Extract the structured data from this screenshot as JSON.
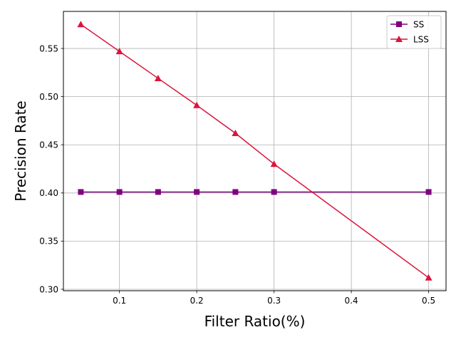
{
  "chart_data": {
    "type": "line",
    "title": "",
    "xlabel": "Filter Ratio(%)",
    "ylabel": "Precision Rate",
    "xlim": [
      0.0275,
      0.5225
    ],
    "ylim": [
      0.2985,
      0.5885
    ],
    "xticks": [
      0.1,
      0.2,
      0.3,
      0.4,
      0.5
    ],
    "xtick_labels": [
      "0.1",
      "0.2",
      "0.3",
      "0.4",
      "0.5"
    ],
    "yticks": [
      0.3,
      0.35,
      0.4,
      0.45,
      0.5,
      0.55
    ],
    "ytick_labels": [
      "0.30",
      "0.35",
      "0.40",
      "0.45",
      "0.50",
      "0.55"
    ],
    "grid": true,
    "legend": "top-right",
    "series": [
      {
        "name": "SS",
        "color": "#800080",
        "marker": "square",
        "x": [
          0.05,
          0.1,
          0.15,
          0.2,
          0.25,
          0.3,
          0.5
        ],
        "y": [
          0.401,
          0.401,
          0.401,
          0.401,
          0.401,
          0.401,
          0.401
        ]
      },
      {
        "name": "LSS",
        "color": "#dc143c",
        "marker": "triangle",
        "x": [
          0.05,
          0.1,
          0.15,
          0.2,
          0.25,
          0.3,
          0.5
        ],
        "y": [
          0.575,
          0.547,
          0.519,
          0.491,
          0.462,
          0.43,
          0.312
        ]
      }
    ]
  }
}
